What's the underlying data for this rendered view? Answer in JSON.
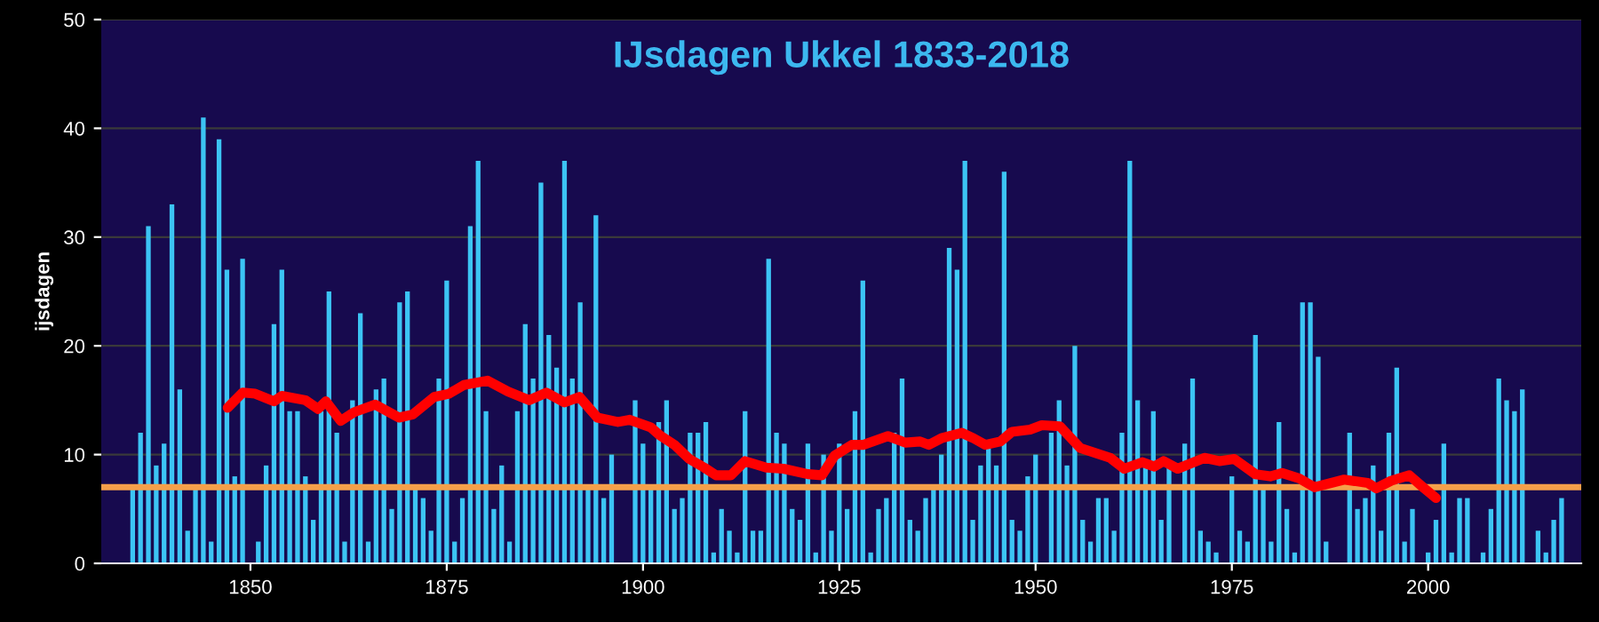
{
  "chart_data": {
    "type": "bar",
    "title": "IJsdagen Ukkel 1833-2018",
    "ylabel": "ijsdagen",
    "xlim": [
      1831,
      2019.5
    ],
    "ylim": [
      0,
      50
    ],
    "xticks": [
      1850,
      1875,
      1900,
      1925,
      1950,
      1975,
      2000
    ],
    "yticks": [
      0,
      10,
      20,
      30,
      40,
      50
    ],
    "grid": "y",
    "series": [
      {
        "color": "#3cc4f4",
        "x": [
          1835,
          1836,
          1837,
          1838,
          1839,
          1840,
          1841,
          1842,
          1843,
          1844,
          1845,
          1846,
          1847,
          1848,
          1849,
          1850,
          1851,
          1852,
          1853,
          1854,
          1855,
          1856,
          1857,
          1858,
          1859,
          1860,
          1861,
          1862,
          1863,
          1864,
          1865,
          1866,
          1867,
          1868,
          1869,
          1870,
          1871,
          1872,
          1873,
          1874,
          1875,
          1876,
          1877,
          1878,
          1879,
          1880,
          1881,
          1882,
          1883,
          1884,
          1885,
          1886,
          1887,
          1888,
          1889,
          1890,
          1891,
          1892,
          1893,
          1894,
          1895,
          1896,
          1897,
          1898,
          1899,
          1900,
          1901,
          1902,
          1903,
          1904,
          1905,
          1906,
          1907,
          1908,
          1909,
          1910,
          1911,
          1912,
          1913,
          1914,
          1915,
          1916,
          1917,
          1918,
          1919,
          1920,
          1921,
          1922,
          1923,
          1924,
          1925,
          1926,
          1927,
          1928,
          1929,
          1930,
          1931,
          1932,
          1933,
          1934,
          1935,
          1936,
          1937,
          1938,
          1939,
          1940,
          1941,
          1942,
          1943,
          1944,
          1945,
          1946,
          1947,
          1948,
          1949,
          1950,
          1951,
          1952,
          1953,
          1954,
          1955,
          1956,
          1957,
          1958,
          1959,
          1960,
          1961,
          1962,
          1963,
          1964,
          1965,
          1966,
          1967,
          1968,
          1969,
          1970,
          1971,
          1972,
          1973,
          1974,
          1975,
          1976,
          1977,
          1978,
          1979,
          1980,
          1981,
          1982,
          1983,
          1984,
          1985,
          1986,
          1987,
          1988,
          1989,
          1990,
          1991,
          1992,
          1993,
          1994,
          1995,
          1996,
          1997,
          1998,
          1999,
          2000,
          2001,
          2002,
          2003,
          2004,
          2005,
          2006,
          2007,
          2008,
          2009,
          2010,
          2011,
          2012,
          2013,
          2014,
          2015,
          2016,
          2017
        ],
        "values": [
          7,
          12,
          31,
          9,
          11,
          33,
          16,
          3,
          7,
          41,
          2,
          39,
          27,
          8,
          28,
          0,
          2,
          9,
          22,
          27,
          14,
          14,
          8,
          4,
          14,
          25,
          12,
          2,
          15,
          23,
          2,
          16,
          17,
          5,
          24,
          25,
          7,
          6,
          3,
          17,
          26,
          2,
          6,
          31,
          37,
          14,
          5,
          9,
          2,
          14,
          22,
          17,
          35,
          21,
          18,
          37,
          17,
          24,
          7,
          32,
          6,
          10,
          0,
          0,
          15,
          11,
          7,
          13,
          15,
          5,
          6,
          12,
          12,
          13,
          1,
          5,
          3,
          1,
          14,
          3,
          3,
          28,
          12,
          11,
          5,
          4,
          11,
          1,
          10,
          3,
          11,
          5,
          14,
          26,
          1,
          5,
          6,
          12,
          17,
          4,
          3,
          6,
          7,
          10,
          29,
          27,
          37,
          4,
          9,
          11,
          9,
          36,
          4,
          3,
          8,
          10,
          0,
          12,
          15,
          9,
          20,
          4,
          2,
          6,
          6,
          3,
          12,
          37,
          15,
          9,
          14,
          4,
          9,
          null,
          11,
          17,
          3,
          2,
          1,
          0,
          8,
          3,
          2,
          21,
          7,
          2,
          13,
          5,
          1,
          24,
          24,
          19,
          2,
          0,
          0,
          12,
          5,
          6,
          9,
          3,
          12,
          18,
          2,
          5,
          0,
          1,
          4,
          11,
          1,
          6,
          6,
          0,
          1,
          5,
          17,
          15,
          14,
          16,
          0,
          3,
          1,
          4,
          6
        ]
      },
      {
        "type": "line",
        "color": "#ff0000",
        "x": [
          1847.1,
          1849,
          1850.6,
          1853,
          1854,
          1857,
          1858.6,
          1859.6,
          1861.5,
          1863.2,
          1865.9,
          1868.9,
          1870.7,
          1873.4,
          1875.3,
          1877.2,
          1880.2,
          1882.8,
          1885.5,
          1887.7,
          1890,
          1891.9,
          1894.2,
          1896.8,
          1898.3,
          1901,
          1902.1,
          1904,
          1905.9,
          1907.8,
          1909.3,
          1911.2,
          1913,
          1915.7,
          1917.9,
          1921,
          1922.8,
          1924.4,
          1926.6,
          1928.1,
          1931.2,
          1933.4,
          1935.3,
          1936.4,
          1938,
          1940.6,
          1942.1,
          1943.6,
          1945.5,
          1947,
          1949.3,
          1950.8,
          1953.1,
          1955.7,
          1959.5,
          1961.3,
          1963.6,
          1965.1,
          1966.3,
          1968.1,
          1971.5,
          1973.4,
          1975.3,
          1978,
          1979.9,
          1981.4,
          1983.6,
          1985.5,
          1989.3,
          1992.3,
          1993.4,
          1995.3,
          1997.6,
          1999.5,
          2001
        ],
        "values": [
          14.3,
          15.7,
          15.6,
          14.9,
          15.4,
          15.0,
          14.2,
          14.9,
          13.1,
          13.9,
          14.6,
          13.4,
          13.7,
          15.3,
          15.6,
          16.4,
          16.8,
          15.8,
          15.0,
          15.7,
          14.8,
          15.3,
          13.4,
          13.0,
          13.2,
          12.5,
          11.8,
          10.9,
          9.6,
          8.8,
          8.1,
          8.1,
          9.4,
          8.8,
          8.7,
          8.2,
          8.1,
          9.9,
          10.9,
          10.9,
          11.7,
          11.1,
          11.2,
          10.9,
          11.5,
          12.0,
          11.5,
          10.9,
          11.2,
          12.1,
          12.3,
          12.7,
          12.6,
          10.6,
          9.7,
          8.7,
          9.3,
          8.9,
          9.4,
          8.7,
          9.7,
          9.4,
          9.6,
          8.2,
          8.0,
          8.3,
          7.8,
          7.0,
          7.7,
          7.4,
          6.9,
          7.6,
          8.1,
          6.9,
          6.0
        ]
      }
    ],
    "ref_lines": [
      {
        "axis": "y",
        "value": 7.0,
        "color": "#f5a04a",
        "line_style": "solid"
      }
    ]
  }
}
